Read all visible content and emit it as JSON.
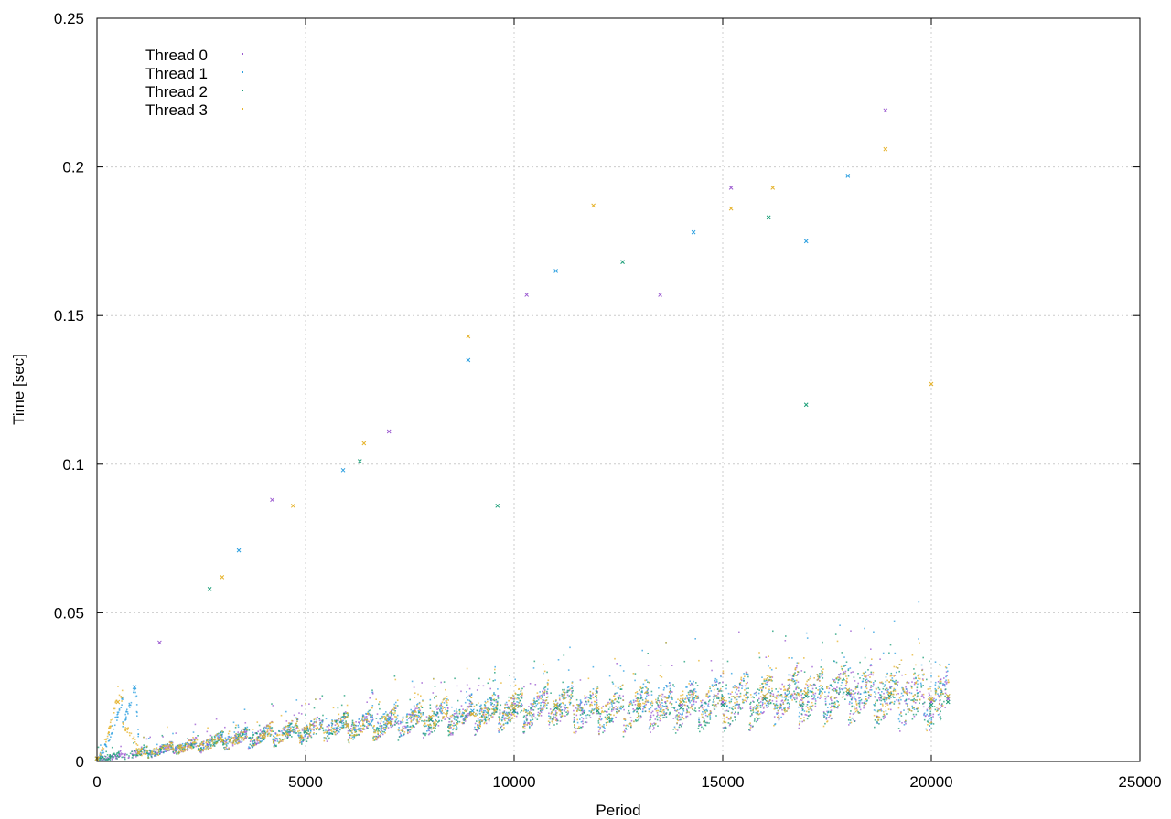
{
  "chart_data": {
    "type": "scatter",
    "title": "",
    "xlabel": "Period",
    "ylabel": "Time [sec]",
    "xlim": [
      0,
      25000
    ],
    "ylim": [
      0,
      0.25
    ],
    "x_ticks": [
      0,
      5000,
      10000,
      15000,
      20000,
      25000
    ],
    "x_tick_labels": [
      "0",
      "5000",
      "10000",
      "15000",
      "20000",
      "25000"
    ],
    "y_ticks": [
      0,
      0.05,
      0.1,
      0.15,
      0.2,
      0.25
    ],
    "y_tick_labels": [
      "0",
      "0.05",
      "0.1",
      "0.15",
      "0.2",
      "0.25"
    ],
    "grid": true,
    "legend_position": "top-left",
    "series": [
      {
        "name": "Thread 0",
        "color": "#9b59d0",
        "points": [
          [
            0,
            0.001
          ],
          [
            1000,
            0.003
          ],
          [
            2000,
            0.005
          ],
          [
            3000,
            0.007
          ],
          [
            4000,
            0.009
          ],
          [
            5000,
            0.011
          ],
          [
            6000,
            0.012
          ],
          [
            7000,
            0.013
          ],
          [
            8000,
            0.014
          ],
          [
            9000,
            0.016
          ],
          [
            10000,
            0.017
          ],
          [
            11000,
            0.018
          ],
          [
            12000,
            0.017
          ],
          [
            13000,
            0.018
          ],
          [
            14000,
            0.019
          ],
          [
            15000,
            0.02
          ],
          [
            16000,
            0.021
          ],
          [
            17000,
            0.022
          ],
          [
            18000,
            0.023
          ],
          [
            19000,
            0.022
          ],
          [
            20000,
            0.02
          ],
          [
            20400,
            0.021
          ],
          [
            1500,
            0.04
          ],
          [
            4200,
            0.088
          ],
          [
            7000,
            0.111
          ],
          [
            10300,
            0.157
          ],
          [
            13500,
            0.157
          ],
          [
            15200,
            0.193
          ],
          [
            18900,
            0.219
          ]
        ]
      },
      {
        "name": "Thread 1",
        "color": "#2b9fe0",
        "points": [
          [
            0,
            0.001
          ],
          [
            1000,
            0.003
          ],
          [
            2000,
            0.005
          ],
          [
            3000,
            0.007
          ],
          [
            4000,
            0.009
          ],
          [
            5000,
            0.011
          ],
          [
            6000,
            0.012
          ],
          [
            7000,
            0.014
          ],
          [
            8000,
            0.015
          ],
          [
            9000,
            0.017
          ],
          [
            10000,
            0.018
          ],
          [
            11000,
            0.019
          ],
          [
            12000,
            0.018
          ],
          [
            13000,
            0.019
          ],
          [
            14000,
            0.02
          ],
          [
            15000,
            0.021
          ],
          [
            16000,
            0.022
          ],
          [
            17000,
            0.023
          ],
          [
            18000,
            0.024
          ],
          [
            19000,
            0.023
          ],
          [
            20000,
            0.021
          ],
          [
            20400,
            0.022
          ],
          [
            900,
            0.025
          ],
          [
            3400,
            0.071
          ],
          [
            5900,
            0.098
          ],
          [
            8900,
            0.135
          ],
          [
            11000,
            0.165
          ],
          [
            14300,
            0.178
          ],
          [
            17000,
            0.175
          ],
          [
            18000,
            0.197
          ]
        ]
      },
      {
        "name": "Thread 2",
        "color": "#1a9e77",
        "points": [
          [
            0,
            0.001
          ],
          [
            1000,
            0.003
          ],
          [
            2000,
            0.005
          ],
          [
            3000,
            0.007
          ],
          [
            4000,
            0.009
          ],
          [
            5000,
            0.01
          ],
          [
            6000,
            0.012
          ],
          [
            7000,
            0.013
          ],
          [
            8000,
            0.014
          ],
          [
            9000,
            0.016
          ],
          [
            10000,
            0.017
          ],
          [
            11000,
            0.018
          ],
          [
            12000,
            0.017
          ],
          [
            13000,
            0.018
          ],
          [
            14000,
            0.018
          ],
          [
            15000,
            0.019
          ],
          [
            16000,
            0.021
          ],
          [
            17000,
            0.022
          ],
          [
            18000,
            0.023
          ],
          [
            19000,
            0.022
          ],
          [
            20000,
            0.019
          ],
          [
            20400,
            0.02
          ],
          [
            2700,
            0.058
          ],
          [
            6300,
            0.101
          ],
          [
            9600,
            0.086
          ],
          [
            12600,
            0.168
          ],
          [
            16100,
            0.183
          ],
          [
            17000,
            0.12
          ]
        ]
      },
      {
        "name": "Thread 3",
        "color": "#e6b32c",
        "points": [
          [
            0,
            0.001
          ],
          [
            1000,
            0.003
          ],
          [
            2000,
            0.005
          ],
          [
            3000,
            0.007
          ],
          [
            4000,
            0.009
          ],
          [
            5000,
            0.011
          ],
          [
            6000,
            0.012
          ],
          [
            7000,
            0.013
          ],
          [
            8000,
            0.015
          ],
          [
            9000,
            0.016
          ],
          [
            10000,
            0.018
          ],
          [
            11000,
            0.019
          ],
          [
            12000,
            0.018
          ],
          [
            13000,
            0.019
          ],
          [
            14000,
            0.02
          ],
          [
            15000,
            0.021
          ],
          [
            16000,
            0.022
          ],
          [
            17000,
            0.023
          ],
          [
            18000,
            0.024
          ],
          [
            19000,
            0.023
          ],
          [
            20000,
            0.021
          ],
          [
            20400,
            0.022
          ],
          [
            500,
            0.02
          ],
          [
            3000,
            0.062
          ],
          [
            4700,
            0.086
          ],
          [
            6400,
            0.107
          ],
          [
            8900,
            0.143
          ],
          [
            11900,
            0.187
          ],
          [
            15200,
            0.186
          ],
          [
            16200,
            0.193
          ],
          [
            18900,
            0.206
          ],
          [
            20000,
            0.127
          ]
        ]
      }
    ]
  }
}
